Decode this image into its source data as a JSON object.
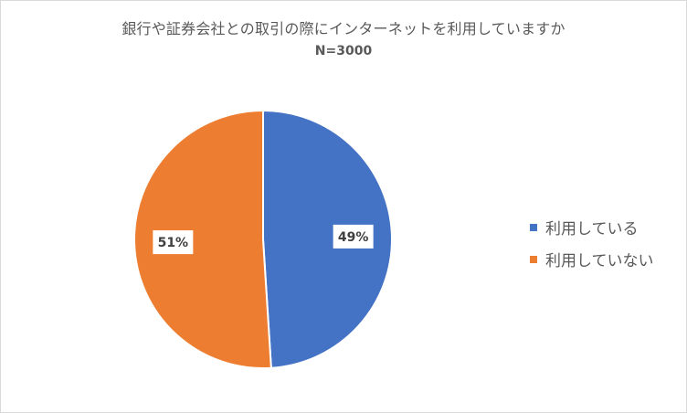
{
  "chart_data": {
    "type": "pie",
    "title": "銀行や証券会社との取引の際にインターネットを利用していますか",
    "subtitle": "N=3000",
    "categories": [
      "利用している",
      "利用していない"
    ],
    "values": [
      49,
      51
    ],
    "labels": [
      "49%",
      "51%"
    ],
    "colors": [
      "#4472c4",
      "#ed7d31"
    ],
    "legend": "right"
  }
}
